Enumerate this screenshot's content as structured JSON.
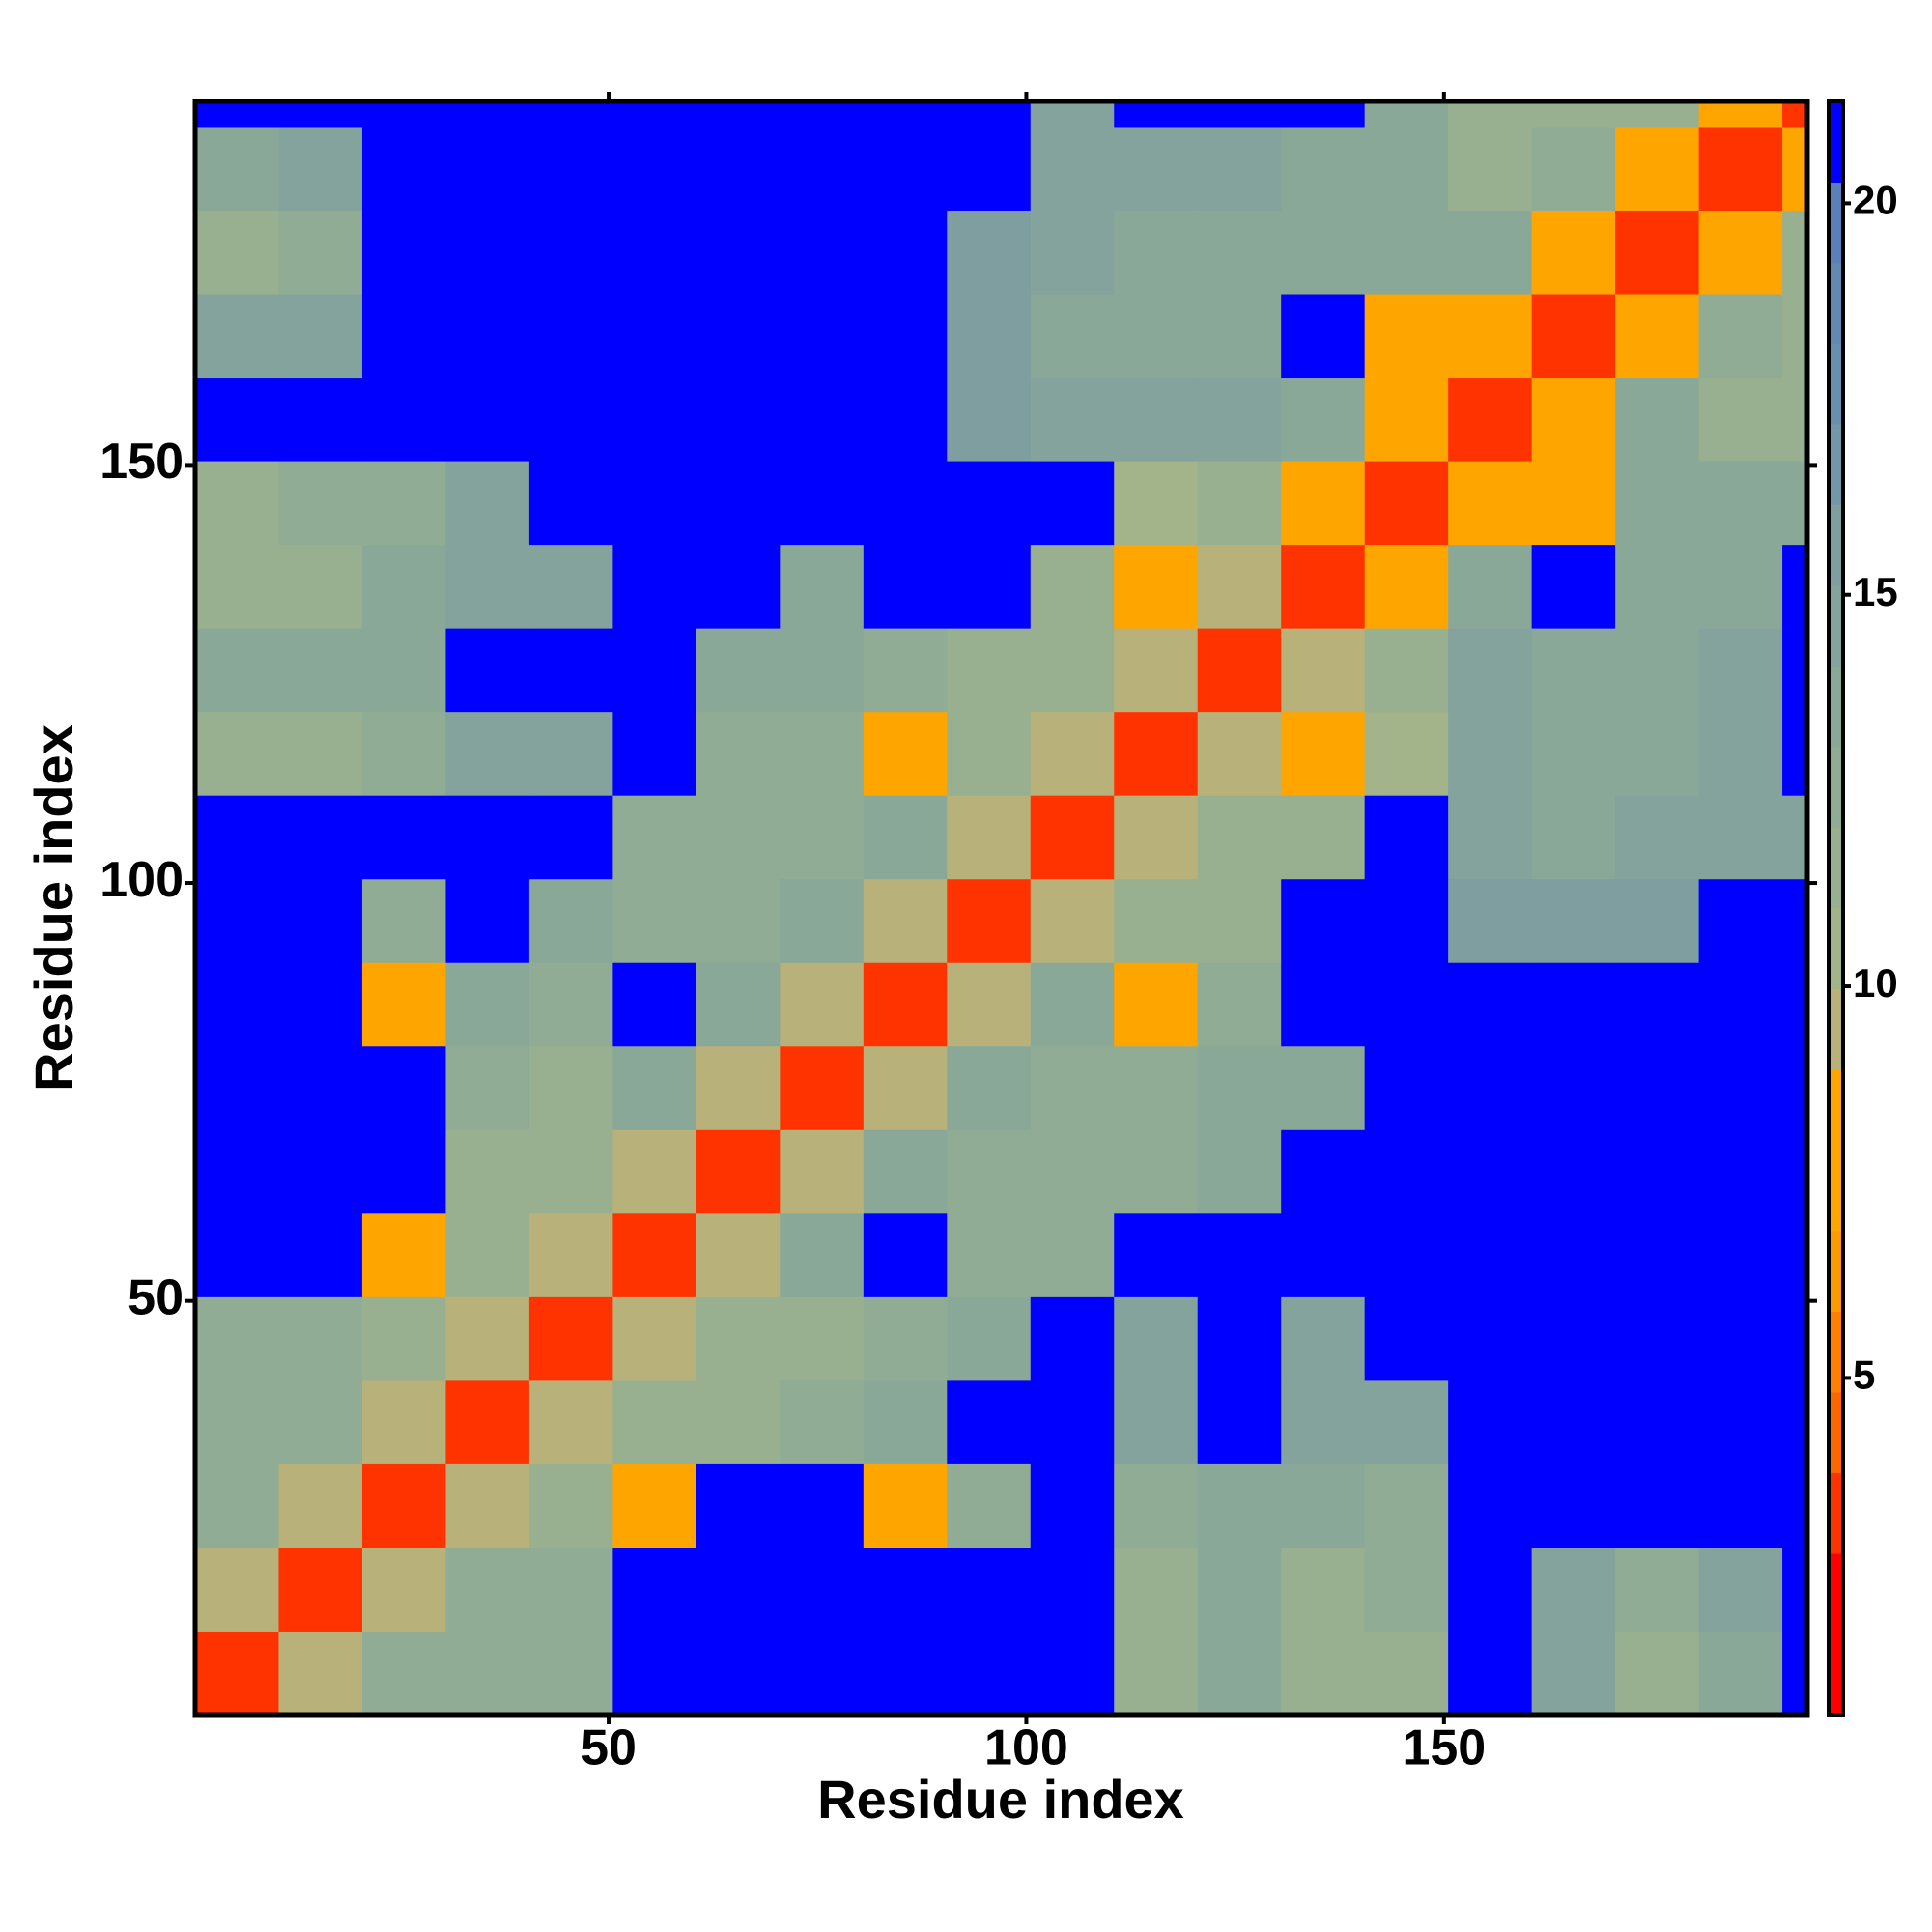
{
  "chart_data": {
    "type": "heatmap",
    "x_label": "Residue index",
    "y_label": "Residue index",
    "xbins": [
      0.5,
      10.5,
      20.5,
      30.5,
      40.5,
      50.5,
      60.5,
      70.5,
      80.5,
      90.5,
      100.5,
      110.5,
      120.5,
      130.5,
      140.5,
      150.5,
      160.5,
      170.5,
      180.5,
      190.5,
      193.5
    ],
    "ybins": [
      0.5,
      10.5,
      20.5,
      30.5,
      40.5,
      50.5,
      60.5,
      70.5,
      80.5,
      90.5,
      100.5,
      110.5,
      120.5,
      130.5,
      140.5,
      150.5,
      160.5,
      170.5,
      180.5,
      190.5,
      193.5
    ],
    "xlim": [
      0.5,
      193.5
    ],
    "ylim": [
      0.5,
      193.5
    ],
    "xticks": [
      50,
      100,
      150
    ],
    "yticks": [
      50,
      100,
      150
    ],
    "zlim": [
      0.7,
      21.3
    ],
    "zticks": [
      5,
      10,
      15,
      20
    ],
    "colors": [
      "#ff0000",
      "#ff0000",
      "#ff3300",
      "#ff6600",
      "#ff8000",
      "#ff9900",
      "#ffa500",
      "#ffa500",
      "#b8b27a",
      "#a3b38a",
      "#98b090",
      "#90ac94",
      "#8aa898",
      "#84a39c",
      "#7e9ea0",
      "#7396a8",
      "#6a8fae",
      "#6388b2",
      "#5b80b8",
      "#0000ff"
    ],
    "values": [
      [
        3,
        9,
        13,
        13,
        13,
        21,
        21,
        21,
        21,
        21,
        21,
        12,
        14,
        11,
        12,
        21,
        15,
        12,
        14,
        21
      ],
      [
        9,
        3,
        9,
        13,
        13,
        21,
        21,
        21,
        21,
        21,
        21,
        12,
        14,
        12,
        13,
        21,
        15,
        13,
        15,
        21
      ],
      [
        13,
        9,
        3,
        9,
        12,
        8,
        21,
        21,
        8,
        13,
        21,
        13,
        14,
        14,
        13,
        21,
        21,
        21,
        21,
        21
      ],
      [
        13,
        13,
        9,
        3,
        9,
        12,
        12,
        13,
        14,
        21,
        21,
        15,
        21,
        15,
        15,
        21,
        21,
        21,
        21,
        21
      ],
      [
        13,
        13,
        12,
        9,
        3,
        9,
        12,
        11,
        13,
        14,
        21,
        15,
        21,
        15,
        21,
        21,
        21,
        21,
        21,
        21
      ],
      [
        21,
        21,
        8,
        12,
        9,
        3,
        9,
        14,
        21,
        13,
        13,
        21,
        21,
        21,
        21,
        21,
        21,
        21,
        21,
        21
      ],
      [
        21,
        21,
        21,
        12,
        12,
        9,
        3,
        9,
        14,
        13,
        13,
        13,
        14,
        21,
        21,
        21,
        21,
        21,
        21,
        21
      ],
      [
        21,
        21,
        21,
        13,
        11,
        14,
        9,
        3,
        9,
        14,
        13,
        13,
        14,
        14,
        21,
        21,
        21,
        21,
        21,
        21
      ],
      [
        21,
        21,
        8,
        14,
        13,
        21,
        14,
        9,
        3,
        9,
        14,
        8,
        13,
        21,
        21,
        21,
        21,
        21,
        21,
        21
      ],
      [
        21,
        21,
        13,
        21,
        14,
        13,
        13,
        14,
        9,
        3,
        9,
        12,
        12,
        21,
        21,
        16,
        16,
        16,
        21,
        21
      ],
      [
        21,
        21,
        21,
        21,
        21,
        13,
        13,
        13,
        14,
        9,
        3,
        9,
        12,
        12,
        21,
        15,
        14,
        15,
        15,
        15
      ],
      [
        12,
        12,
        13,
        15,
        15,
        21,
        13,
        13,
        8,
        12,
        9,
        3,
        9,
        8,
        10,
        15,
        14,
        14,
        15,
        21
      ],
      [
        14,
        14,
        14,
        21,
        21,
        21,
        14,
        14,
        13,
        12,
        12,
        9,
        3,
        9,
        12,
        15,
        14,
        14,
        15,
        21
      ],
      [
        11,
        12,
        14,
        15,
        15,
        21,
        21,
        14,
        21,
        21,
        12,
        8,
        9,
        3,
        7,
        14,
        21,
        14,
        14,
        21
      ],
      [
        12,
        13,
        13,
        15,
        21,
        21,
        21,
        21,
        21,
        21,
        21,
        10,
        12,
        7,
        3,
        7,
        8,
        14,
        14,
        14
      ],
      [
        21,
        21,
        21,
        21,
        21,
        21,
        21,
        21,
        21,
        16,
        15,
        15,
        15,
        14,
        7,
        3,
        8,
        14,
        12,
        12
      ],
      [
        15,
        15,
        21,
        21,
        21,
        21,
        21,
        21,
        21,
        16,
        14,
        14,
        14,
        21,
        8,
        8,
        3,
        7,
        13,
        12
      ],
      [
        12,
        13,
        21,
        21,
        21,
        21,
        21,
        21,
        21,
        16,
        15,
        14,
        14,
        14,
        14,
        14,
        7,
        3,
        7,
        12
      ],
      [
        14,
        15,
        21,
        21,
        21,
        21,
        21,
        21,
        21,
        21,
        15,
        15,
        15,
        14,
        14,
        12,
        13,
        7,
        3,
        8
      ],
      [
        21,
        21,
        21,
        21,
        21,
        21,
        21,
        21,
        21,
        21,
        15,
        21,
        21,
        21,
        14,
        12,
        12,
        12,
        8,
        3
      ]
    ]
  }
}
